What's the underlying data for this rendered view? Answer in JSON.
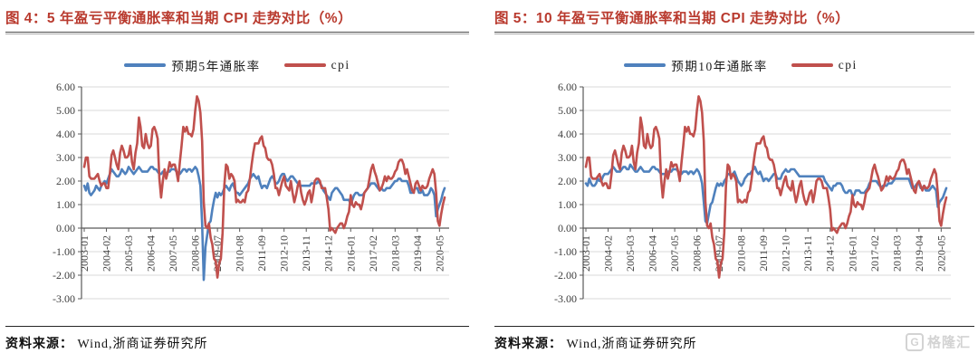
{
  "page": {
    "source_label": "资料来源：",
    "source_value": "Wind,浙商证券研究所",
    "logo": {
      "icon": "gelonghui-logo-icon",
      "monogram": "G",
      "text": "格隆汇"
    }
  },
  "colors": {
    "breakeven_blue": "#4F81BD",
    "cpi_red": "#C0504D",
    "title_red": "#B93A2E",
    "gridline": "#d9d9d9",
    "axis": "#595959"
  },
  "chart_data": [
    {
      "type": "line",
      "title": "图 4：5 年盈亏平衡通胀率和当期 CPI 走势对比（%）",
      "xlabel": "",
      "ylabel": "",
      "ylim": [
        -3,
        6
      ],
      "ytick_step": 1,
      "grid": true,
      "legend_position": "top",
      "x_start": "2003-01",
      "x_tick_every": 13,
      "x_tick_labels": [
        "2003-01",
        "2004-02",
        "2005-03",
        "2006-04",
        "2007-05",
        "2008-06",
        "2009-07",
        "2010-08",
        "2011-09",
        "2012-10",
        "2013-11",
        "2014-12",
        "2016-01",
        "2017-02",
        "2018-03",
        "2019-04",
        "2020-05"
      ],
      "series": [
        {
          "name": "预期5年通胀率",
          "color": "#4F81BD",
          "values": [
            1.8,
            1.6,
            1.9,
            1.5,
            1.4,
            1.5,
            1.6,
            1.8,
            1.7,
            1.6,
            1.8,
            1.9,
            2.0,
            1.9,
            2.1,
            2.3,
            2.5,
            2.4,
            2.3,
            2.2,
            2.2,
            2.3,
            2.5,
            2.4,
            2.3,
            2.4,
            2.6,
            2.5,
            2.4,
            2.3,
            2.4,
            2.5,
            2.6,
            2.5,
            2.4,
            2.4,
            2.4,
            2.4,
            2.5,
            2.6,
            2.6,
            2.5,
            2.5,
            2.4,
            2.3,
            2.3,
            2.4,
            2.4,
            2.3,
            2.4,
            2.4,
            2.5,
            2.5,
            2.5,
            2.4,
            2.3,
            2.3,
            2.4,
            2.5,
            2.5,
            2.4,
            2.5,
            2.5,
            2.4,
            2.5,
            2.6,
            2.5,
            2.2,
            1.8,
            0.2,
            -2.2,
            -0.8,
            -0.3,
            0.2,
            0.3,
            0.8,
            1.2,
            1.5,
            1.3,
            1.5,
            1.4,
            1.5,
            1.7,
            1.8,
            1.7,
            1.6,
            1.8,
            1.9,
            1.7,
            1.5,
            1.5,
            1.4,
            1.5,
            1.6,
            1.7,
            1.8,
            1.9,
            2.1,
            2.2,
            2.3,
            2.2,
            2.1,
            2.2,
            1.9,
            1.7,
            1.8,
            1.8,
            1.7,
            1.9,
            2.1,
            2.2,
            2.1,
            1.9,
            1.9,
            2.0,
            2.2,
            2.3,
            2.3,
            2.1,
            2.0,
            2.1,
            2.2,
            2.2,
            2.1,
            2.0,
            1.9,
            1.8,
            1.8,
            1.8,
            1.8,
            1.8,
            1.8,
            1.8,
            1.9,
            1.9,
            1.9,
            1.9,
            2.0,
            1.9,
            1.8,
            1.6,
            1.5,
            1.4,
            1.3,
            1.2,
            1.5,
            1.6,
            1.7,
            1.7,
            1.6,
            1.5,
            1.4,
            1.2,
            1.2,
            1.2,
            1.2,
            1.0,
            1.2,
            1.4,
            1.5,
            1.5,
            1.4,
            1.4,
            1.4,
            1.5,
            1.6,
            1.7,
            1.8,
            1.9,
            1.9,
            1.9,
            1.8,
            1.7,
            1.6,
            1.7,
            1.6,
            1.6,
            1.7,
            1.7,
            1.7,
            1.8,
            1.9,
            2.0,
            2.0,
            2.1,
            2.1,
            2.0,
            2.0,
            2.0,
            2.0,
            1.8,
            1.5,
            1.5,
            1.6,
            1.7,
            1.7,
            1.5,
            1.5,
            1.6,
            1.4,
            1.4,
            1.4,
            1.5,
            1.7,
            1.6,
            1.4,
            0.5,
            0.8,
            1.0,
            1.2,
            1.5,
            1.7
          ]
        },
        {
          "name": "cpi",
          "color": "#C0504D",
          "values": [
            2.6,
            3.0,
            3.0,
            2.2,
            2.1,
            2.1,
            2.1,
            2.2,
            2.3,
            2.0,
            1.8,
            1.9,
            1.9,
            1.7,
            1.7,
            2.3,
            3.1,
            3.3,
            3.0,
            2.7,
            2.5,
            3.2,
            3.5,
            3.3,
            3.0,
            3.0,
            3.1,
            3.5,
            2.8,
            2.5,
            3.2,
            3.6,
            4.7,
            4.3,
            3.5,
            3.4,
            4.0,
            3.6,
            3.4,
            3.5,
            4.2,
            4.3,
            4.1,
            3.8,
            2.1,
            1.3,
            2.0,
            2.5,
            2.1,
            2.4,
            2.8,
            2.6,
            2.7,
            2.7,
            2.4,
            2.0,
            2.8,
            3.5,
            4.3,
            4.1,
            4.3,
            4.0,
            4.0,
            3.9,
            4.2,
            5.0,
            5.6,
            5.4,
            4.9,
            3.7,
            1.1,
            0.1,
            0.0,
            0.2,
            -0.4,
            -0.7,
            -1.3,
            -1.4,
            -2.1,
            -1.5,
            -1.3,
            -0.2,
            1.8,
            2.7,
            2.6,
            2.1,
            2.3,
            2.2,
            2.0,
            1.1,
            1.2,
            1.1,
            1.1,
            1.2,
            1.1,
            1.5,
            1.6,
            2.1,
            2.7,
            3.2,
            3.6,
            3.6,
            3.6,
            3.8,
            3.9,
            3.5,
            3.4,
            3.0,
            2.9,
            2.9,
            2.7,
            2.3,
            1.7,
            1.7,
            1.4,
            1.7,
            2.0,
            2.2,
            1.8,
            1.7,
            1.6,
            2.0,
            1.5,
            1.1,
            1.4,
            1.8,
            2.0,
            1.5,
            1.2,
            1.0,
            1.2,
            1.5,
            1.6,
            1.1,
            1.5,
            2.0,
            2.1,
            2.1,
            2.0,
            1.7,
            1.7,
            1.7,
            1.3,
            0.8,
            -0.1,
            0.0,
            -0.1,
            -0.2,
            0.0,
            0.1,
            0.2,
            0.2,
            0.0,
            0.2,
            0.5,
            0.7,
            1.4,
            1.0,
            0.9,
            1.1,
            1.0,
            1.0,
            0.8,
            1.1,
            1.5,
            1.6,
            1.7,
            2.1,
            2.5,
            2.7,
            2.4,
            2.2,
            1.9,
            1.6,
            1.7,
            1.9,
            2.2,
            2.0,
            2.2,
            2.1,
            2.1,
            2.2,
            2.4,
            2.5,
            2.8,
            2.9,
            2.9,
            2.7,
            2.3,
            2.5,
            2.2,
            1.9,
            1.6,
            1.5,
            1.9,
            2.0,
            1.8,
            1.6,
            1.8,
            1.7,
            1.7,
            1.8,
            2.1,
            2.3,
            2.5,
            2.3,
            1.5,
            0.3,
            0.1,
            0.6,
            1.0,
            1.3
          ]
        }
      ]
    },
    {
      "type": "line",
      "title": "图 5：10 年盈亏平衡通胀率和当期 CPI 走势对比（%）",
      "xlabel": "",
      "ylabel": "",
      "ylim": [
        -3,
        6
      ],
      "ytick_step": 1,
      "grid": true,
      "legend_position": "top",
      "x_start": "2003-01",
      "x_tick_every": 13,
      "x_tick_labels": [
        "2003-01",
        "2004-02",
        "2005-03",
        "2006-04",
        "2007-05",
        "2008-06",
        "2009-07",
        "2010-08",
        "2011-09",
        "2012-10",
        "2013-11",
        "2014-12",
        "2016-01",
        "2017-02",
        "2018-03",
        "2019-04",
        "2020-05"
      ],
      "series": [
        {
          "name": "预期10年通胀率",
          "color": "#4F81BD",
          "values": [
            1.9,
            1.8,
            2.1,
            1.9,
            1.8,
            1.8,
            1.9,
            2.1,
            2.0,
            2.0,
            2.2,
            2.3,
            2.3,
            2.3,
            2.4,
            2.5,
            2.6,
            2.5,
            2.4,
            2.4,
            2.4,
            2.5,
            2.6,
            2.6,
            2.5,
            2.5,
            2.7,
            2.6,
            2.5,
            2.4,
            2.4,
            2.5,
            2.6,
            2.5,
            2.4,
            2.4,
            2.4,
            2.4,
            2.5,
            2.6,
            2.6,
            2.5,
            2.5,
            2.4,
            2.3,
            2.3,
            2.3,
            2.3,
            2.4,
            2.4,
            2.4,
            2.5,
            2.5,
            2.5,
            2.4,
            2.3,
            2.3,
            2.4,
            2.4,
            2.4,
            2.3,
            2.4,
            2.4,
            2.3,
            2.4,
            2.5,
            2.4,
            2.2,
            1.9,
            1.1,
            0.3,
            0.2,
            0.6,
            1.0,
            1.1,
            1.4,
            1.7,
            1.9,
            1.8,
            1.9,
            1.8,
            2.0,
            2.1,
            2.3,
            2.3,
            2.2,
            2.3,
            2.4,
            2.2,
            2.0,
            1.9,
            1.8,
            1.9,
            2.1,
            2.2,
            2.3,
            2.3,
            2.4,
            2.5,
            2.6,
            2.4,
            2.3,
            2.4,
            2.2,
            2.0,
            2.1,
            2.1,
            2.0,
            2.1,
            2.2,
            2.3,
            2.3,
            2.1,
            2.1,
            2.1,
            2.3,
            2.4,
            2.5,
            2.4,
            2.4,
            2.5,
            2.5,
            2.5,
            2.4,
            2.3,
            2.2,
            2.2,
            2.2,
            2.2,
            2.2,
            2.2,
            2.2,
            2.2,
            2.2,
            2.2,
            2.2,
            2.2,
            2.2,
            2.2,
            2.2,
            2.0,
            1.9,
            1.8,
            1.7,
            1.6,
            1.8,
            1.8,
            1.9,
            1.9,
            1.9,
            1.8,
            1.6,
            1.5,
            1.5,
            1.6,
            1.6,
            1.4,
            1.4,
            1.6,
            1.6,
            1.6,
            1.5,
            1.5,
            1.5,
            1.6,
            1.7,
            1.9,
            2.0,
            2.0,
            2.0,
            2.0,
            1.9,
            1.8,
            1.7,
            1.8,
            1.8,
            1.8,
            1.9,
            1.9,
            1.9,
            2.0,
            2.1,
            2.1,
            2.1,
            2.1,
            2.1,
            2.1,
            2.1,
            2.1,
            2.1,
            1.9,
            1.7,
            1.7,
            1.8,
            1.9,
            1.9,
            1.7,
            1.7,
            1.8,
            1.6,
            1.6,
            1.6,
            1.7,
            1.8,
            1.7,
            1.6,
            0.9,
            1.1,
            1.2,
            1.3,
            1.5,
            1.7
          ]
        },
        {
          "name": "cpi",
          "color": "#C0504D",
          "values": [
            2.6,
            3.0,
            3.0,
            2.2,
            2.1,
            2.1,
            2.1,
            2.2,
            2.3,
            2.0,
            1.8,
            1.9,
            1.9,
            1.7,
            1.7,
            2.3,
            3.1,
            3.3,
            3.0,
            2.7,
            2.5,
            3.2,
            3.5,
            3.3,
            3.0,
            3.0,
            3.1,
            3.5,
            2.8,
            2.5,
            3.2,
            3.6,
            4.7,
            4.3,
            3.5,
            3.4,
            4.0,
            3.6,
            3.4,
            3.5,
            4.2,
            4.3,
            4.1,
            3.8,
            2.1,
            1.3,
            2.0,
            2.5,
            2.1,
            2.4,
            2.8,
            2.6,
            2.7,
            2.7,
            2.4,
            2.0,
            2.8,
            3.5,
            4.3,
            4.1,
            4.3,
            4.0,
            4.0,
            3.9,
            4.2,
            5.0,
            5.6,
            5.4,
            4.9,
            3.7,
            1.1,
            0.1,
            0.0,
            0.2,
            -0.4,
            -0.7,
            -1.3,
            -1.4,
            -2.1,
            -1.5,
            -1.3,
            -0.2,
            1.8,
            2.7,
            2.6,
            2.1,
            2.3,
            2.2,
            2.0,
            1.1,
            1.2,
            1.1,
            1.1,
            1.2,
            1.1,
            1.5,
            1.6,
            2.1,
            2.7,
            3.2,
            3.6,
            3.6,
            3.6,
            3.8,
            3.9,
            3.5,
            3.4,
            3.0,
            2.9,
            2.9,
            2.7,
            2.3,
            1.7,
            1.7,
            1.4,
            1.7,
            2.0,
            2.2,
            1.8,
            1.7,
            1.6,
            2.0,
            1.5,
            1.1,
            1.4,
            1.8,
            2.0,
            1.5,
            1.2,
            1.0,
            1.2,
            1.5,
            1.6,
            1.1,
            1.5,
            2.0,
            2.1,
            2.1,
            2.0,
            1.7,
            1.7,
            1.7,
            1.3,
            0.8,
            -0.1,
            0.0,
            -0.1,
            -0.2,
            0.0,
            0.1,
            0.2,
            0.2,
            0.0,
            0.2,
            0.5,
            0.7,
            1.4,
            1.0,
            0.9,
            1.1,
            1.0,
            1.0,
            0.8,
            1.1,
            1.5,
            1.6,
            1.7,
            2.1,
            2.5,
            2.7,
            2.4,
            2.2,
            1.9,
            1.6,
            1.7,
            1.9,
            2.2,
            2.0,
            2.2,
            2.1,
            2.1,
            2.2,
            2.4,
            2.5,
            2.8,
            2.9,
            2.9,
            2.7,
            2.3,
            2.5,
            2.2,
            1.9,
            1.6,
            1.5,
            1.9,
            2.0,
            1.8,
            1.6,
            1.8,
            1.7,
            1.7,
            1.8,
            2.1,
            2.3,
            2.5,
            2.3,
            1.5,
            0.3,
            0.1,
            0.6,
            1.0,
            1.3
          ]
        }
      ]
    }
  ]
}
